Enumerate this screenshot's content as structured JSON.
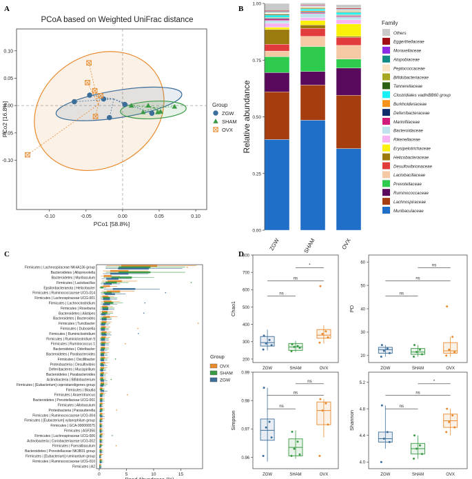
{
  "chart_data": [
    {
      "panel": "A",
      "type": "scatter",
      "title": "PCoA based on Weighted UniFrac distance",
      "xlabel": "PCo1 [58.8%]",
      "ylabel": "PCo2 [16.8%]",
      "xlim": [
        -0.145,
        0.115
      ],
      "ylim": [
        -0.19,
        0.14
      ],
      "xticks": [
        "-0.10",
        "-0.05",
        "0.00",
        "0.05",
        "0.10"
      ],
      "xtick_values": [
        -0.1,
        -0.05,
        0.0,
        0.05,
        0.1
      ],
      "yticks": [
        "-0.10",
        "-0.05",
        "0.00",
        "0.05",
        "0.10"
      ],
      "ytick_values": [
        -0.1,
        -0.05,
        0.0,
        0.05,
        0.1
      ],
      "legend_title": "Group",
      "legend": [
        "ZGW",
        "SHAM",
        "OVX"
      ],
      "colors": {
        "ZGW": "#3c6e9a",
        "SHAM": "#3a9a45",
        "OVX": "#e88a2e"
      },
      "series": [
        {
          "name": "ZGW",
          "centroid": [
            -0.012,
            0.012
          ],
          "points": [
            [
              -0.066,
              0.007
            ],
            [
              -0.045,
              0.019
            ],
            [
              -0.026,
              0.012
            ],
            [
              -0.018,
              -0.022
            ],
            [
              0.003,
              0.002
            ],
            [
              0.04,
              -0.014
            ]
          ]
        },
        {
          "name": "SHAM",
          "centroid": [
            0.043,
            -0.004
          ],
          "points": [
            [
              0.012,
              0.0
            ],
            [
              0.035,
              0.0
            ],
            [
              0.028,
              -0.012
            ],
            [
              0.048,
              -0.012
            ],
            [
              0.052,
              -0.011
            ],
            [
              0.071,
              -0.002
            ]
          ]
        },
        {
          "name": "OVX",
          "centroid": [
            -0.033,
            0.002
          ],
          "points": [
            [
              -0.048,
              0.042
            ],
            [
              -0.038,
              0.027
            ],
            [
              -0.037,
              -0.02
            ],
            [
              -0.046,
              0.078
            ],
            [
              -0.03,
              0.018
            ],
            [
              -0.13,
              -0.09
            ]
          ]
        }
      ]
    },
    {
      "panel": "B",
      "type": "bar",
      "stacked": true,
      "ylabel": "Relative abundance",
      "ylim": [
        0,
        1
      ],
      "yticks": [
        "0.00",
        "0.25",
        "0.50",
        "0.75",
        "1.00"
      ],
      "ytick_values": [
        0,
        0.25,
        0.5,
        0.75,
        1.0
      ],
      "categories": [
        "ZGW",
        "SHAM",
        "OVX"
      ],
      "legend_title": "Family",
      "series": [
        {
          "name": "Muribaculaceae",
          "color": "#1f6fc8",
          "values": [
            0.4,
            0.485,
            0.36
          ]
        },
        {
          "name": "Lachnospiraceae",
          "color": "#a63d0e",
          "values": [
            0.21,
            0.155,
            0.235
          ]
        },
        {
          "name": "Ruminococcaceae",
          "color": "#5a0a5c",
          "values": [
            0.085,
            0.06,
            0.12
          ]
        },
        {
          "name": "Prevotellaceae",
          "color": "#2ecb4e",
          "values": [
            0.07,
            0.11,
            0.04
          ]
        },
        {
          "name": "Lactobacillaceae",
          "color": "#f6c9a5",
          "values": [
            0.025,
            0.045,
            0.06
          ]
        },
        {
          "name": "Desulfovibrionaceae",
          "color": "#e23b3b",
          "values": [
            0.03,
            0.035,
            0.035
          ]
        },
        {
          "name": "Helicobacteraceae",
          "color": "#9b7a0e",
          "values": [
            0.065,
            0.015,
            0.005
          ]
        },
        {
          "name": "Erysipelotrichaceae",
          "color": "#fbf00a",
          "values": [
            0.01,
            0.02,
            0.055
          ]
        },
        {
          "name": "Rikenellaceae",
          "color": "#f7b3f2",
          "values": [
            0.018,
            0.012,
            0.018
          ]
        },
        {
          "name": "Bacteroidaceae",
          "color": "#bfe3ec",
          "values": [
            0.012,
            0.018,
            0.012
          ]
        },
        {
          "name": "Marinifilaceae",
          "color": "#d21a7a",
          "values": [
            0.006,
            0.004,
            0.004
          ]
        },
        {
          "name": "Deferribacteraceae",
          "color": "#0f2d6a",
          "values": [
            0.004,
            0.004,
            0.003
          ]
        },
        {
          "name": "Burkholderiaceae",
          "color": "#f7931a",
          "values": [
            0.003,
            0.004,
            0.003
          ]
        },
        {
          "name": "Clostridiales vadinBB60 group",
          "color": "#19f0f5",
          "values": [
            0.01,
            0.008,
            0.01
          ]
        },
        {
          "name": "Tannerellaceae",
          "color": "#2a5e12",
          "values": [
            0.004,
            0.003,
            0.003
          ]
        },
        {
          "name": "Bifidobacteriaceae",
          "color": "#a8a820",
          "values": [
            0.002,
            0.003,
            0.002
          ]
        },
        {
          "name": "Peptococcaceae",
          "color": "#fbe3c4",
          "values": [
            0.006,
            0.005,
            0.005
          ]
        },
        {
          "name": "Atopobiaceae",
          "color": "#118c84",
          "values": [
            0.003,
            0.002,
            0.003
          ]
        },
        {
          "name": "Moraxellaceae",
          "color": "#8a2be2",
          "values": [
            0.002,
            0.002,
            0.002
          ]
        },
        {
          "name": "Eggerthellaceae",
          "color": "#a10d12",
          "values": [
            0.004,
            0.003,
            0.004
          ]
        },
        {
          "name": "Others",
          "color": "#c9c9c9",
          "values": [
            0.031,
            0.009,
            0.016
          ]
        }
      ]
    },
    {
      "panel": "C",
      "type": "box",
      "orientation": "horizontal",
      "xlabel": "Read Abundance (%)",
      "xlim": [
        -0.5,
        19
      ],
      "xticks": [
        "0",
        "5",
        "10",
        "15"
      ],
      "xtick_values": [
        0,
        5,
        10,
        15
      ],
      "legend_title": "Group",
      "legend": [
        "OVX",
        "SHAM",
        "ZGW"
      ],
      "colors": {
        "OVX": "#e88a2e",
        "SHAM": "#3a9a45",
        "ZGW": "#3c6e9a"
      },
      "categories": [
        "Firmicutes | Lachnospiraceae NK4A136 group",
        "Bacteroidetes | Alloprevotella",
        "Bacteroidetes | Muribaculum",
        "Firmicutes | Lactobacillus",
        "Epsilonbacteraeota | Helicobacter",
        "Firmicutes | Ruminococcaceae UCG-014",
        "Firmicutes | Lachnospiraceae UCG-001",
        "Firmicutes | Lachnoclostridium",
        "Firmicutes | Roseburia",
        "Bacteroidetes | Alistipes",
        "Bacteroidetes | Bacteroides",
        "Firmicutes | Turicibacter",
        "Firmicutes | Dubosiella",
        "Firmicutes | Ruminiclostridium",
        "Firmicutes | Ruminiclostridium 9",
        "Firmicutes | Ruminococcus 1",
        "Bacteroidetes | Odoribacter",
        "Bacteroidetes | Parabacteroides",
        "Firmicutes | Oscillibacter",
        "Proteobacteria | Desulfovibrio",
        "Deferribacteres | Mucispirillum",
        "Bacteroidetes | Parabacteroides",
        "Actinobacteria | Bifidobacterium",
        "Firmicutes | [Eubacterium] coprostanoligenes group",
        "Firmicutes | Blautia",
        "Firmicutes | Anaerotruncus",
        "Bacteroidetes | Prevotellaceae UCG-001",
        "Firmicutes | Allobaculum",
        "Proteobacteria | Parasutterella",
        "Firmicutes | Ruminococcaceae UCG-004",
        "Firmicutes | [Eubacterium] xylanophilum group",
        "Firmicutes | GCA-900066575",
        "Firmicutes | ASF356",
        "Firmicutes | Lachnospiraceae UCG-006",
        "Actinobacteria | Coriobacteriaceae UCG-002",
        "Firmicutes | Faecalibaculum",
        "Bacteroidetes | Prevotellaceae NK3B31 group",
        "Firmicutes | [Eubacterium] ruminantium group",
        "Firmicutes | Ruminococcaceae UCG-010",
        "Firmicutes | A2"
      ],
      "group_medians": {
        "OVX": [
          6.8,
          3.4,
          1.4,
          2.6,
          1.2,
          2.4,
          1.0,
          1.4,
          0.9,
          0.9,
          1.2,
          0.8,
          0.7,
          0.8,
          0.7,
          0.7,
          0.6,
          0.6,
          0.6,
          0.6,
          0.5,
          0.5,
          0.4,
          0.5,
          0.3,
          0.4,
          0.3,
          0.3,
          0.3,
          0.3,
          0.3,
          0.2,
          0.2,
          0.3,
          0.2,
          0.2,
          0.2,
          0.2,
          0.2,
          0.1
        ],
        "SHAM": [
          6.0,
          6.0,
          3.8,
          2.0,
          0.4,
          1.4,
          1.2,
          1.6,
          1.0,
          0.9,
          0.8,
          0.7,
          0.6,
          0.7,
          0.6,
          0.6,
          0.6,
          0.5,
          0.5,
          0.4,
          0.4,
          0.4,
          0.4,
          0.5,
          0.3,
          0.3,
          0.3,
          0.2,
          0.3,
          0.2,
          0.2,
          0.2,
          0.2,
          0.2,
          0.2,
          0.2,
          0.2,
          0.1,
          0.2,
          0.1
        ],
        "ZGW": [
          5.8,
          3.4,
          2.2,
          1.4,
          4.2,
          1.8,
          1.2,
          1.2,
          1.0,
          0.7,
          0.8,
          0.6,
          0.6,
          0.8,
          0.6,
          0.6,
          0.5,
          0.5,
          0.5,
          0.5,
          0.4,
          0.4,
          0.5,
          0.4,
          0.5,
          0.3,
          0.3,
          0.2,
          0.2,
          0.3,
          0.2,
          0.2,
          0.2,
          0.2,
          0.2,
          0.1,
          0.2,
          0.1,
          0.2,
          0.1
        ]
      }
    },
    {
      "panel": "D",
      "type": "box",
      "subplots": [
        {
          "name": "Chao1",
          "ylabel": "Chao1",
          "ylim": [
            180,
            800
          ],
          "yticks": [
            "200",
            "300",
            "400",
            "500",
            "600",
            "700",
            "800"
          ],
          "ytick_values": [
            200,
            300,
            400,
            500,
            600,
            700,
            800
          ],
          "categories": [
            "ZGW",
            "SHAM",
            "OVX"
          ],
          "box": {
            "ZGW": [
              250,
              275,
              295,
              330,
              370
            ],
            "SHAM": [
              240,
              250,
              270,
              290,
              305
            ],
            "OVX": [
              290,
              320,
              338,
              370,
              395
            ]
          },
          "points": {
            "ZGW": [
              335,
              310,
              290,
              280,
              255
            ],
            "SHAM": [
              285,
              275,
              270,
              265,
              245
            ],
            "OVX": [
              620,
              360,
              345,
              325,
              295
            ]
          },
          "comparisons": [
            {
              "pair": [
                "ZGW",
                "SHAM"
              ],
              "label": "ns"
            },
            {
              "pair": [
                "ZGW",
                "OVX"
              ],
              "label": "ns"
            },
            {
              "pair": [
                "SHAM",
                "OVX"
              ],
              "label": "*"
            }
          ]
        },
        {
          "name": "PD",
          "ylabel": "PD",
          "ylim": [
            17,
            63
          ],
          "yticks": [
            "20",
            "30",
            "40",
            "50",
            "60"
          ],
          "ytick_values": [
            20,
            30,
            40,
            50,
            60
          ],
          "categories": [
            "ZGW",
            "SHAM",
            "OVX"
          ],
          "box": {
            "ZGW": [
              19.5,
              21.0,
              22.5,
              23.5,
              24.5
            ],
            "SHAM": [
              19.5,
              20.5,
              21.5,
              23.0,
              24.5
            ],
            "OVX": [
              19.5,
              21.0,
              22.0,
              25.5,
              28.0
            ]
          },
          "points": {
            "ZGW": [
              24.5,
              23.0,
              22.0,
              21.0,
              19.5
            ],
            "SHAM": [
              24.5,
              22.5,
              21.5,
              20.5,
              19.5
            ],
            "OVX": [
              41,
              28,
              22.5,
              21.5,
              20
            ]
          },
          "comparisons": [
            {
              "pair": [
                "ZGW",
                "SHAM"
              ],
              "label": "ns"
            },
            {
              "pair": [
                "ZGW",
                "OVX"
              ],
              "label": "ns"
            },
            {
              "pair": [
                "SHAM",
                "OVX"
              ],
              "label": "ns"
            }
          ]
        },
        {
          "name": "Simpson",
          "ylabel": "Simpson",
          "ylim": [
            0.956,
            0.99
          ],
          "yticks": [
            "0.96",
            "0.97",
            "0.98",
            "0.99"
          ],
          "ytick_values": [
            0.96,
            0.97,
            0.98,
            0.99
          ],
          "categories": [
            "ZGW",
            "SHAM",
            "OVX"
          ],
          "box": {
            "ZGW": [
              0.9585,
              0.966,
              0.9695,
              0.9735,
              0.9845
            ],
            "SHAM": [
              0.9595,
              0.9605,
              0.9635,
              0.9665,
              0.9695
            ],
            "OVX": [
              0.967,
              0.9715,
              0.9765,
              0.9795,
              0.9805
            ]
          },
          "points": {
            "ZGW": [
              0.9845,
              0.9725,
              0.9705,
              0.967,
              0.9605
            ],
            "SHAM": [
              0.969,
              0.9655,
              0.963,
              0.961,
              0.9605
            ],
            "OVX": [
              0.9805,
              0.979,
              0.9765,
              0.9715,
              0.9605
            ]
          },
          "comparisons": [
            {
              "pair": [
                "ZGW",
                "SHAM"
              ],
              "label": "ns"
            },
            {
              "pair": [
                "ZGW",
                "OVX"
              ],
              "label": "ns"
            },
            {
              "pair": [
                "SHAM",
                "OVX"
              ],
              "label": "ns"
            }
          ]
        },
        {
          "name": "Shannon",
          "ylabel": "Shannon",
          "ylim": [
            3.9,
            5.35
          ],
          "yticks": [
            "4.0",
            "4.4",
            "4.8",
            "5.2"
          ],
          "ytick_values": [
            4.0,
            4.4,
            4.8,
            5.2
          ],
          "categories": [
            "ZGW",
            "SHAM",
            "OVX"
          ],
          "box": {
            "ZGW": [
              4.2,
              4.3,
              4.35,
              4.45,
              4.85
            ],
            "SHAM": [
              4.05,
              4.12,
              4.2,
              4.28,
              4.4
            ],
            "OVX": [
              4.4,
              4.52,
              4.62,
              4.72,
              4.8
            ]
          },
          "points": {
            "ZGW": [
              4.85,
              4.45,
              4.35,
              4.3,
              4.0
            ],
            "SHAM": [
              4.4,
              4.25,
              4.2,
              4.12,
              4.05
            ],
            "OVX": [
              4.8,
              4.7,
              4.6,
              4.52,
              4.45
            ]
          },
          "comparisons": [
            {
              "pair": [
                "ZGW",
                "SHAM"
              ],
              "label": "ns"
            },
            {
              "pair": [
                "ZGW",
                "OVX"
              ],
              "label": "ns"
            },
            {
              "pair": [
                "SHAM",
                "OVX"
              ],
              "label": "*"
            }
          ]
        }
      ],
      "colors": {
        "ZGW": "#3c6e9a",
        "SHAM": "#3a9a45",
        "OVX": "#e88a2e"
      }
    }
  ],
  "labels": {
    "A": "A",
    "B": "B",
    "C": "C",
    "D": "D"
  }
}
